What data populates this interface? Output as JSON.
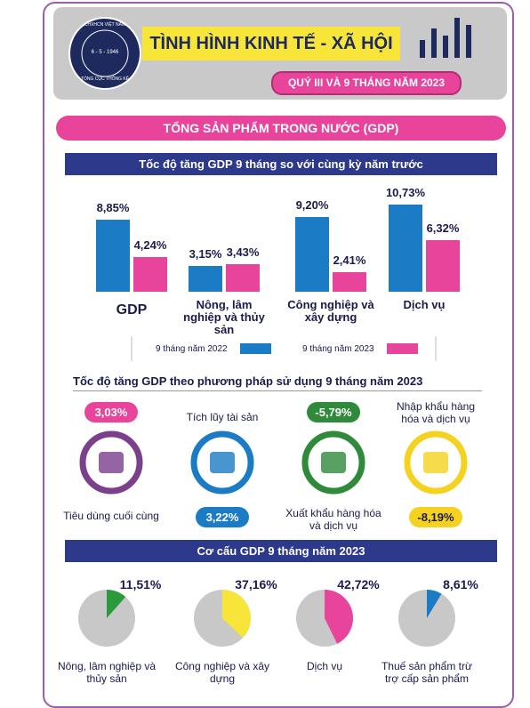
{
  "header": {
    "logo": [
      "CHXHCN VIỆT NAM",
      "6 - 5 - 1946",
      "TỔNG CỤC THỐNG KÊ"
    ],
    "title": "TÌNH HÌNH KINH TẾ - XÃ HỘI",
    "subtitle": "QUÝ III VÀ 9 THÁNG NĂM 2023"
  },
  "section_title": "TỔNG SẢN PHẨM TRONG NƯỚC (GDP)",
  "usage": {
    "title": "Tốc độ tăng GDP theo phương pháp sử dụng 9 tháng năm 2023",
    "items": [
      {
        "label": "Tiêu dùng cuối cùng",
        "value": "3,03%"
      },
      {
        "label": "Tích lũy tài sản",
        "value": "3,22%"
      },
      {
        "label": "Xuất khẩu hàng hóa và dịch vụ",
        "value": "-5,79%"
      },
      {
        "label": "Nhập khẩu hàng hóa và dịch vụ",
        "value": "-8,19%"
      }
    ]
  },
  "structure_title": "Cơ cấu GDP 9 tháng năm 2023",
  "chart_data": [
    {
      "type": "bar",
      "title": "Tốc độ tăng GDP 9 tháng so với cùng kỳ năm trước",
      "categories": [
        "GDP",
        "Nông, lâm nghiệp và thủy sản",
        "Công nghiệp và xây dựng",
        "Dịch vụ"
      ],
      "series": [
        {
          "name": "9 tháng năm 2022",
          "color": "#1b7bc4",
          "values": [
            8.85,
            3.15,
            9.2,
            10.73
          ],
          "value_labels": [
            "8,85%",
            "3,15%",
            "9,20%",
            "10,73%"
          ]
        },
        {
          "name": "9 tháng năm 2023",
          "color": "#e8449b",
          "values": [
            4.24,
            3.43,
            2.41,
            6.32
          ],
          "value_labels": [
            "4,24%",
            "3,43%",
            "2,41%",
            "6,32%"
          ]
        }
      ]
    },
    {
      "type": "pie",
      "title": "Nông, lâm nghiệp và thủy sản",
      "values": [
        11.51
      ],
      "value_labels": [
        "11,51%"
      ],
      "color": "#2a9a3d"
    },
    {
      "type": "pie",
      "title": "Công nghiệp và xây dựng",
      "values": [
        37.16
      ],
      "value_labels": [
        "37,16%"
      ],
      "color": "#f7e53a"
    },
    {
      "type": "pie",
      "title": "Dịch vụ",
      "values": [
        42.72
      ],
      "value_labels": [
        "42,72%"
      ],
      "color": "#e8449b"
    },
    {
      "type": "pie",
      "title": "Thuế sản phẩm trừ trợ cấp sản phẩm",
      "values": [
        8.61
      ],
      "value_labels": [
        "8,61%"
      ],
      "color": "#1b7bc4"
    }
  ]
}
